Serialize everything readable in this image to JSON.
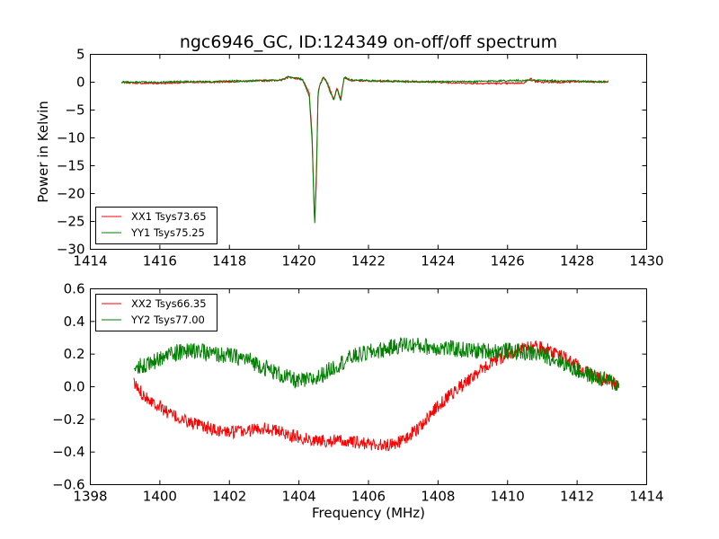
{
  "chart_data": [
    {
      "type": "line",
      "title": "ngc6946_GC, ID:124349 on-off/off spectrum",
      "ylabel": "Power in Kelvin",
      "xlabel": "",
      "xlim": [
        1414,
        1430
      ],
      "ylim": [
        -30,
        5
      ],
      "xticks": [
        "1414",
        "1416",
        "1418",
        "1420",
        "1422",
        "1424",
        "1426",
        "1428",
        "1430"
      ],
      "yticks": [
        "5",
        "0",
        "−5",
        "−10",
        "−15",
        "−20",
        "−25",
        "−30"
      ],
      "grid": false,
      "legend_position": "lower-left",
      "series": [
        {
          "name": "XX1 Tsys73.65",
          "color": "#ff0000",
          "x": [
            1414.9,
            1415.5,
            1416.0,
            1416.5,
            1417.0,
            1417.5,
            1418.0,
            1418.5,
            1419.0,
            1419.5,
            1419.7,
            1419.9,
            1420.1,
            1420.3,
            1420.38,
            1420.45,
            1420.5,
            1420.55,
            1420.6,
            1420.7,
            1420.8,
            1420.9,
            1421.0,
            1421.1,
            1421.2,
            1421.3,
            1421.5,
            1422.0,
            1422.5,
            1423.0,
            1423.5,
            1424.0,
            1424.5,
            1425.0,
            1425.5,
            1426.0,
            1426.5,
            1426.65,
            1426.8,
            1427.0,
            1427.5,
            1428.0,
            1428.5,
            1428.9
          ],
          "y": [
            0.0,
            -0.2,
            -0.2,
            -0.1,
            0.0,
            0.0,
            0.1,
            0.2,
            0.3,
            0.4,
            0.9,
            0.7,
            0.5,
            -2.0,
            -10.0,
            -25.5,
            -18.0,
            -1.5,
            -0.5,
            1.0,
            0.2,
            -1.5,
            -3.0,
            -1.0,
            -3.0,
            0.9,
            0.3,
            0.2,
            0.2,
            0.1,
            0.1,
            0.0,
            -0.1,
            -0.2,
            -0.2,
            -0.2,
            -0.1,
            0.7,
            0.1,
            0.0,
            0.0,
            0.1,
            0.0,
            0.1
          ]
        },
        {
          "name": "YY1 Tsys75.25",
          "color": "#007f00",
          "x": [
            1414.9,
            1415.5,
            1416.0,
            1416.5,
            1417.0,
            1417.5,
            1418.0,
            1418.5,
            1419.0,
            1419.5,
            1419.7,
            1419.9,
            1420.1,
            1420.3,
            1420.38,
            1420.45,
            1420.5,
            1420.55,
            1420.6,
            1420.7,
            1420.8,
            1420.9,
            1421.0,
            1421.1,
            1421.2,
            1421.3,
            1421.5,
            1422.0,
            1422.5,
            1423.0,
            1423.5,
            1424.0,
            1424.5,
            1425.0,
            1425.5,
            1426.0,
            1426.5,
            1426.65,
            1426.8,
            1427.0,
            1427.5,
            1428.0,
            1428.5,
            1428.9
          ],
          "y": [
            0.0,
            0.0,
            0.0,
            0.1,
            0.1,
            0.1,
            0.2,
            0.2,
            0.3,
            0.3,
            1.0,
            0.8,
            0.5,
            -2.5,
            -11.0,
            -26.0,
            -16.5,
            -2.0,
            -0.6,
            0.9,
            0.0,
            -1.8,
            -3.2,
            -1.2,
            -3.3,
            0.9,
            0.4,
            0.3,
            0.2,
            0.2,
            0.1,
            0.1,
            0.1,
            0.1,
            0.2,
            0.3,
            0.3,
            0.4,
            0.3,
            0.3,
            0.2,
            0.2,
            0.1,
            0.0
          ]
        }
      ]
    },
    {
      "type": "line",
      "title": "",
      "xlabel": "Frequency (MHz)",
      "ylabel": "",
      "xlim": [
        1398,
        1414
      ],
      "ylim": [
        -0.6,
        0.6
      ],
      "xticks": [
        "1398",
        "1400",
        "1402",
        "1404",
        "1406",
        "1408",
        "1410",
        "1412",
        "1414"
      ],
      "yticks": [
        "0.6",
        "0.4",
        "0.2",
        "0.0",
        "−0.2",
        "−0.4",
        "−0.6"
      ],
      "grid": false,
      "legend_position": "upper-left",
      "series": [
        {
          "name": "XX2 Tsys66.35",
          "color": "#ff0000",
          "x": [
            1399.25,
            1399.4,
            1399.6,
            1399.8,
            1400.0,
            1400.25,
            1400.5,
            1401.0,
            1401.5,
            1402.0,
            1402.5,
            1403.0,
            1403.5,
            1404.0,
            1404.5,
            1405.0,
            1405.5,
            1406.0,
            1406.5,
            1407.0,
            1407.5,
            1408.0,
            1408.5,
            1409.0,
            1409.5,
            1410.0,
            1410.5,
            1411.0,
            1411.5,
            1412.0,
            1412.5,
            1413.0,
            1413.2
          ],
          "y": [
            0.02,
            -0.02,
            -0.06,
            -0.09,
            -0.12,
            -0.16,
            -0.19,
            -0.23,
            -0.26,
            -0.28,
            -0.27,
            -0.25,
            -0.28,
            -0.31,
            -0.33,
            -0.33,
            -0.34,
            -0.35,
            -0.36,
            -0.33,
            -0.24,
            -0.12,
            -0.02,
            0.06,
            0.14,
            0.2,
            0.24,
            0.24,
            0.2,
            0.13,
            0.06,
            0.03,
            0.01
          ]
        },
        {
          "name": "YY2 Tsys77.00",
          "color": "#007f00",
          "x": [
            1399.25,
            1399.4,
            1399.6,
            1399.8,
            1400.0,
            1400.25,
            1400.5,
            1401.0,
            1401.5,
            1402.0,
            1402.5,
            1403.0,
            1403.5,
            1404.0,
            1404.5,
            1405.0,
            1405.5,
            1406.0,
            1406.5,
            1407.0,
            1407.5,
            1408.0,
            1408.5,
            1409.0,
            1409.5,
            1410.0,
            1410.5,
            1411.0,
            1411.5,
            1412.0,
            1412.5,
            1413.0,
            1413.2
          ],
          "y": [
            0.1,
            0.13,
            0.14,
            0.15,
            0.17,
            0.2,
            0.21,
            0.22,
            0.2,
            0.19,
            0.17,
            0.12,
            0.07,
            0.03,
            0.05,
            0.12,
            0.18,
            0.21,
            0.23,
            0.26,
            0.25,
            0.24,
            0.23,
            0.22,
            0.22,
            0.22,
            0.21,
            0.2,
            0.16,
            0.1,
            0.06,
            0.03,
            0.0
          ]
        }
      ]
    }
  ]
}
